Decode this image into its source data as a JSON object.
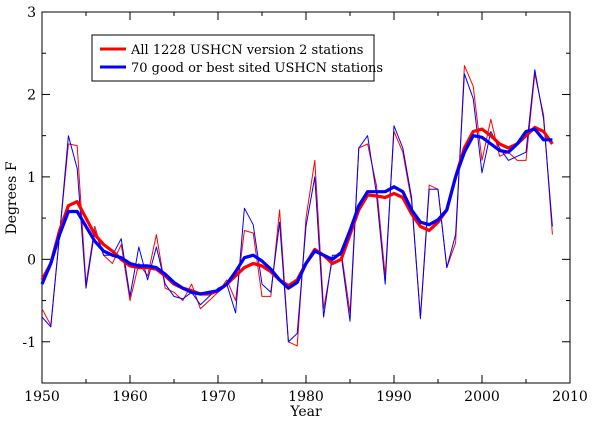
{
  "chart_data": {
    "type": "line",
    "title": "",
    "xlabel": "Year",
    "ylabel": "Degrees F",
    "xlim": [
      1950,
      2010
    ],
    "ylim": [
      -1.5,
      3
    ],
    "x_ticks": [
      1950,
      1960,
      1970,
      1980,
      1990,
      2000,
      2010
    ],
    "y_ticks": [
      -1,
      0,
      1,
      2,
      3
    ],
    "grid": false,
    "legend_position": "top-left",
    "x": [
      1950,
      1951,
      1952,
      1953,
      1954,
      1955,
      1956,
      1957,
      1958,
      1959,
      1960,
      1961,
      1962,
      1963,
      1964,
      1965,
      1966,
      1967,
      1968,
      1969,
      1970,
      1971,
      1972,
      1973,
      1974,
      1975,
      1976,
      1977,
      1978,
      1979,
      1980,
      1981,
      1982,
      1983,
      1984,
      1985,
      1986,
      1987,
      1988,
      1989,
      1990,
      1991,
      1992,
      1993,
      1994,
      1995,
      1996,
      1997,
      1998,
      1999,
      2000,
      2001,
      2002,
      2003,
      2004,
      2005,
      2006,
      2007,
      2008
    ],
    "series": [
      {
        "name": "All 1228 USHCN version 2 stations",
        "color": "#ff0000",
        "kind": "annual",
        "values": [
          -0.6,
          -0.8,
          0.3,
          1.4,
          1.38,
          -0.3,
          0.4,
          0.05,
          -0.05,
          0.18,
          -0.5,
          -0.05,
          -0.2,
          0.3,
          -0.35,
          -0.4,
          -0.5,
          -0.3,
          -0.6,
          -0.5,
          -0.4,
          -0.25,
          -0.5,
          0.35,
          0.32,
          -0.45,
          -0.45,
          0.6,
          -1.0,
          -1.05,
          0.5,
          1.2,
          -0.6,
          0.0,
          0.1,
          -0.65,
          1.35,
          1.4,
          0.9,
          -0.2,
          1.55,
          1.3,
          0.7,
          -0.7,
          0.9,
          0.85,
          -0.1,
          0.2,
          2.35,
          2.1,
          1.2,
          1.7,
          1.25,
          1.3,
          1.2,
          1.2,
          2.25,
          1.75,
          0.3
        ]
      },
      {
        "name": "70 good or best sited USHCN stations",
        "color": "#0000ff",
        "kind": "annual",
        "values": [
          -0.7,
          -0.82,
          0.3,
          1.5,
          1.1,
          -0.35,
          0.35,
          0.05,
          0.05,
          0.25,
          -0.45,
          0.15,
          -0.25,
          0.15,
          -0.3,
          -0.45,
          -0.48,
          -0.4,
          -0.55,
          -0.45,
          -0.35,
          -0.3,
          -0.65,
          0.62,
          0.42,
          -0.3,
          -0.4,
          0.45,
          -1.0,
          -0.9,
          0.4,
          1.0,
          -0.7,
          0.05,
          0.05,
          -0.75,
          1.35,
          1.5,
          0.8,
          -0.3,
          1.62,
          1.35,
          0.75,
          -0.72,
          0.85,
          0.85,
          -0.1,
          0.3,
          2.25,
          1.95,
          1.05,
          1.55,
          1.35,
          1.2,
          1.25,
          1.3,
          2.3,
          1.7,
          0.4
        ]
      },
      {
        "name": "All 1228 USHCN version 2 stations",
        "color": "#ff0000",
        "kind": "smoothed",
        "values": [
          -0.25,
          -0.05,
          0.35,
          0.65,
          0.7,
          0.5,
          0.3,
          0.18,
          0.1,
          0.0,
          -0.08,
          -0.1,
          -0.1,
          -0.12,
          -0.2,
          -0.3,
          -0.35,
          -0.38,
          -0.42,
          -0.42,
          -0.38,
          -0.3,
          -0.2,
          -0.1,
          -0.05,
          -0.08,
          -0.15,
          -0.25,
          -0.32,
          -0.25,
          -0.05,
          0.12,
          0.05,
          -0.05,
          0.0,
          0.3,
          0.6,
          0.78,
          0.77,
          0.75,
          0.8,
          0.75,
          0.55,
          0.4,
          0.35,
          0.45,
          0.6,
          1.0,
          1.35,
          1.55,
          1.58,
          1.5,
          1.4,
          1.35,
          1.4,
          1.5,
          1.6,
          1.55,
          1.4
        ]
      },
      {
        "name": "70 good or best sited USHCN stations",
        "color": "#0000ff",
        "kind": "smoothed",
        "values": [
          -0.3,
          -0.05,
          0.3,
          0.58,
          0.58,
          0.4,
          0.22,
          0.1,
          0.05,
          0.02,
          -0.05,
          -0.08,
          -0.08,
          -0.1,
          -0.18,
          -0.28,
          -0.35,
          -0.4,
          -0.42,
          -0.4,
          -0.38,
          -0.3,
          -0.15,
          0.02,
          0.05,
          -0.02,
          -0.12,
          -0.25,
          -0.35,
          -0.28,
          -0.05,
          0.1,
          0.05,
          0.0,
          0.08,
          0.35,
          0.65,
          0.82,
          0.82,
          0.82,
          0.88,
          0.82,
          0.6,
          0.45,
          0.42,
          0.48,
          0.6,
          1.0,
          1.3,
          1.5,
          1.48,
          1.4,
          1.32,
          1.3,
          1.4,
          1.55,
          1.58,
          1.45,
          1.45
        ]
      }
    ],
    "legend": [
      {
        "label": "All 1228 USHCN version 2 stations",
        "color": "#ff0000"
      },
      {
        "label": "70 good or best sited USHCN stations",
        "color": "#0000ff"
      }
    ]
  }
}
